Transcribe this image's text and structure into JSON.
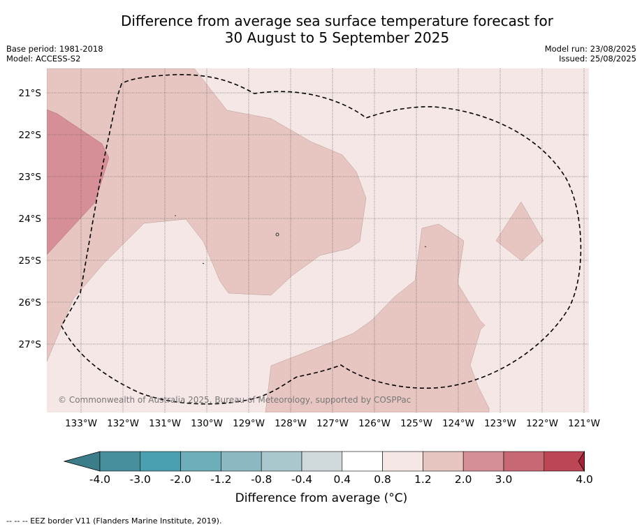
{
  "title_line1": "Difference from average sea surface temperature forecast for",
  "title_line2": "30 August to 5 September 2025",
  "meta_left": [
    "Base period: 1981-2018",
    "Model: ACCESS-S2"
  ],
  "meta_right": [
    "Model run: 23/08/2025",
    "Issued: 25/08/2025"
  ],
  "map": {
    "lat_labels": [
      "21°S",
      "22°S",
      "23°S",
      "24°S",
      "25°S",
      "26°S",
      "27°S"
    ],
    "lon_labels": [
      "133°W",
      "132°W",
      "131°W",
      "130°W",
      "129°W",
      "128°W",
      "127°W",
      "126°W",
      "125°W",
      "124°W",
      "123°W",
      "122°W",
      "121°W"
    ],
    "copyright": "© Commonwealth of Australia 2025, Bureau of Meteorology, supported by COSPPac",
    "colors": {
      "band_0_4_to_0_8": "#f5e7e6",
      "band_0_8_to_1_2": "#e7c6c2",
      "band_1_2_to_2_0": "#d68f97",
      "grid": "#555555",
      "eez": "#000000"
    }
  },
  "colorbar": {
    "title": "Difference from average (°C)",
    "tick_labels": [
      "-4.0",
      "-3.0",
      "-2.0",
      "-1.2",
      "-0.8",
      "-0.4",
      "0.4",
      "0.8",
      "1.2",
      "2.0",
      "3.0",
      "4.0"
    ],
    "colors": [
      "#478e9c",
      "#4aa0b0",
      "#6eaebb",
      "#8cb8c4",
      "#a9c8cd",
      "#d0d9db",
      "#ffffff",
      "#f5e7e6",
      "#e7c6c2",
      "#d68f97",
      "#c86875",
      "#bd4655"
    ],
    "under_color": "#3b7d89",
    "over_color": "#a92138"
  },
  "footnote": "--  --  -- EEZ border V11 (Flanders Marine Institute, 2019)."
}
